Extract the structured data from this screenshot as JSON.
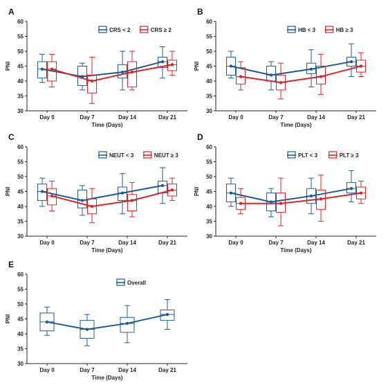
{
  "colors": {
    "blue": "#1F5A96",
    "red": "#D7262B",
    "dark": "#222222"
  },
  "chart_data": [
    {
      "panel": "A",
      "type": "boxplot",
      "xlabel": "Time (Days)",
      "ylabel": "PNI",
      "ylim": [
        30,
        60
      ],
      "yticks": [
        "30",
        "35",
        "40",
        "45",
        "50",
        "55",
        "60"
      ],
      "categories": [
        "Day 0",
        "Day 7",
        "Day 14",
        "Day 21"
      ],
      "legend_position": "top-right",
      "series": [
        {
          "name": "CRS < 2",
          "color": "blue",
          "boxes": [
            {
              "min": 39.5,
              "q1": 41.0,
              "median": 44.0,
              "q3": 46.5,
              "max": 49.0,
              "mean": 44.0
            },
            {
              "min": 37.0,
              "q1": 38.5,
              "median": 41.5,
              "q3": 45.0,
              "max": 46.0,
              "mean": 41.5
            },
            {
              "min": 37.0,
              "q1": 41.0,
              "median": 43.0,
              "q3": 45.5,
              "max": 50.0,
              "mean": 43.0
            },
            {
              "min": 41.0,
              "q1": 44.5,
              "median": 46.5,
              "q3": 48.0,
              "max": 51.5,
              "mean": 46.5
            }
          ]
        },
        {
          "name": "CRS ≥ 2",
          "color": "red",
          "boxes": [
            {
              "min": 38.0,
              "q1": 40.0,
              "median": 44.0,
              "q3": 46.5,
              "max": 49.0,
              "mean": 44.0
            },
            {
              "min": 32.5,
              "q1": 36.0,
              "median": 40.0,
              "q3": 42.0,
              "max": 48.0,
              "mean": 40.0
            },
            {
              "min": 37.0,
              "q1": 38.0,
              "median": 43.0,
              "q3": 46.5,
              "max": 50.0,
              "mean": 43.0
            },
            {
              "min": 42.0,
              "q1": 43.5,
              "median": 45.5,
              "q3": 47.0,
              "max": 50.0,
              "mean": 45.5
            }
          ]
        }
      ]
    },
    {
      "panel": "B",
      "type": "boxplot",
      "xlabel": "Time (Days)",
      "ylabel": "PNI",
      "ylim": [
        30,
        60
      ],
      "yticks": [
        "30",
        "35",
        "40",
        "45",
        "50",
        "55",
        "60"
      ],
      "categories": [
        "Day 0",
        "Day 7",
        "Day 14",
        "Day 21"
      ],
      "legend_position": "top-right",
      "series": [
        {
          "name": "HB < 3",
          "color": "blue",
          "boxes": [
            {
              "min": 41.0,
              "q1": 42.0,
              "median": 45.0,
              "q3": 48.0,
              "max": 50.0,
              "mean": 45.0
            },
            {
              "min": 37.0,
              "q1": 40.0,
              "median": 42.0,
              "q3": 45.0,
              "max": 46.5,
              "mean": 42.0
            },
            {
              "min": 38.0,
              "q1": 42.5,
              "median": 44.0,
              "q3": 46.0,
              "max": 50.5,
              "mean": 44.0
            },
            {
              "min": 41.5,
              "q1": 45.0,
              "median": 46.5,
              "q3": 48.0,
              "max": 52.5,
              "mean": 46.5
            }
          ]
        },
        {
          "name": "HB ≥ 3",
          "color": "red",
          "boxes": [
            {
              "min": 37.0,
              "q1": 39.0,
              "median": 41.5,
              "q3": 44.5,
              "max": 46.5,
              "mean": 41.5
            },
            {
              "min": 34.0,
              "q1": 37.0,
              "median": 39.5,
              "q3": 42.0,
              "max": 46.0,
              "mean": 39.5
            },
            {
              "min": 35.5,
              "q1": 39.0,
              "median": 41.5,
              "q3": 45.0,
              "max": 49.0,
              "mean": 41.5
            },
            {
              "min": 41.5,
              "q1": 43.0,
              "median": 45.0,
              "q3": 47.0,
              "max": 49.5,
              "mean": 45.0
            }
          ]
        }
      ]
    },
    {
      "panel": "C",
      "type": "boxplot",
      "xlabel": "Time (Days)",
      "ylabel": "PNI",
      "ylim": [
        30,
        60
      ],
      "yticks": [
        "30",
        "35",
        "40",
        "45",
        "50",
        "55",
        "60"
      ],
      "categories": [
        "Day 0",
        "Day 7",
        "Day 14",
        "Day 21"
      ],
      "legend_position": "top-right",
      "series": [
        {
          "name": "NEUT < 3",
          "color": "blue",
          "boxes": [
            {
              "min": 40.0,
              "q1": 42.0,
              "median": 45.0,
              "q3": 47.5,
              "max": 49.5,
              "mean": 45.0
            },
            {
              "min": 37.0,
              "q1": 39.5,
              "median": 42.0,
              "q3": 45.5,
              "max": 47.0,
              "mean": 42.0
            },
            {
              "min": 37.5,
              "q1": 42.0,
              "median": 44.5,
              "q3": 46.5,
              "max": 51.0,
              "mean": 44.5
            },
            {
              "min": 41.0,
              "q1": 44.5,
              "median": 47.0,
              "q3": 48.5,
              "max": 53.0,
              "mean": 47.0
            }
          ]
        },
        {
          "name": "NEUT ≥ 3",
          "color": "red",
          "boxes": [
            {
              "min": 38.5,
              "q1": 40.5,
              "median": 43.5,
              "q3": 46.0,
              "max": 48.5,
              "mean": 43.5
            },
            {
              "min": 34.5,
              "q1": 37.5,
              "median": 40.0,
              "q3": 42.5,
              "max": 46.0,
              "mean": 40.0
            },
            {
              "min": 36.5,
              "q1": 38.5,
              "median": 42.0,
              "q3": 44.0,
              "max": 48.0,
              "mean": 42.0
            },
            {
              "min": 42.0,
              "q1": 43.5,
              "median": 45.5,
              "q3": 47.5,
              "max": 49.5,
              "mean": 45.5
            }
          ]
        }
      ]
    },
    {
      "panel": "D",
      "type": "boxplot",
      "xlabel": "Time (Days)",
      "ylabel": "PNI",
      "ylim": [
        30,
        60
      ],
      "yticks": [
        "30",
        "35",
        "40",
        "45",
        "50",
        "55",
        "60"
      ],
      "categories": [
        "Day 0",
        "Day 7",
        "Day 14",
        "Day 21"
      ],
      "legend_position": "top-right",
      "series": [
        {
          "name": "PLT < 3",
          "color": "blue",
          "boxes": [
            {
              "min": 40.0,
              "q1": 41.5,
              "median": 44.5,
              "q3": 47.5,
              "max": 49.5,
              "mean": 44.5
            },
            {
              "min": 36.5,
              "q1": 38.5,
              "median": 41.5,
              "q3": 44.5,
              "max": 46.0,
              "mean": 41.5
            },
            {
              "min": 37.5,
              "q1": 41.0,
              "median": 43.5,
              "q3": 46.0,
              "max": 49.5,
              "mean": 43.5
            },
            {
              "min": 41.5,
              "q1": 44.5,
              "median": 46.0,
              "q3": 48.0,
              "max": 52.0,
              "mean": 46.0
            }
          ]
        },
        {
          "name": "PLT ≥ 3",
          "color": "red",
          "boxes": [
            {
              "min": 37.5,
              "q1": 39.0,
              "median": 41.0,
              "q3": 43.0,
              "max": 46.0,
              "mean": 41.0
            },
            {
              "min": 33.5,
              "q1": 38.0,
              "median": 41.0,
              "q3": 44.5,
              "max": 49.5,
              "mean": 41.0
            },
            {
              "min": 35.0,
              "q1": 39.0,
              "median": 42.5,
              "q3": 45.5,
              "max": 50.5,
              "mean": 42.5
            },
            {
              "min": 41.0,
              "q1": 42.5,
              "median": 44.5,
              "q3": 46.5,
              "max": 48.5,
              "mean": 44.5
            }
          ]
        }
      ]
    },
    {
      "panel": "E",
      "type": "boxplot",
      "xlabel": "Time (Days)",
      "ylabel": "PNI",
      "ylim": [
        30,
        60
      ],
      "yticks": [
        "30",
        "35",
        "40",
        "45",
        "50",
        "55",
        "60"
      ],
      "categories": [
        "Day 0",
        "Day 7",
        "Day 14",
        "Day 21"
      ],
      "legend_position": "top",
      "series": [
        {
          "name": "Overall",
          "color": "blue",
          "boxes": [
            {
              "min": 39.5,
              "q1": 41.0,
              "median": 44.0,
              "q3": 47.0,
              "max": 49.0,
              "mean": 44.0
            },
            {
              "min": 36.0,
              "q1": 38.5,
              "median": 41.5,
              "q3": 44.5,
              "max": 46.5,
              "mean": 41.5
            },
            {
              "min": 37.0,
              "q1": 40.5,
              "median": 43.5,
              "q3": 45.5,
              "max": 49.5,
              "mean": 43.5
            },
            {
              "min": 41.5,
              "q1": 44.5,
              "median": 46.5,
              "q3": 48.0,
              "max": 51.5,
              "mean": 46.5
            }
          ]
        }
      ]
    }
  ]
}
